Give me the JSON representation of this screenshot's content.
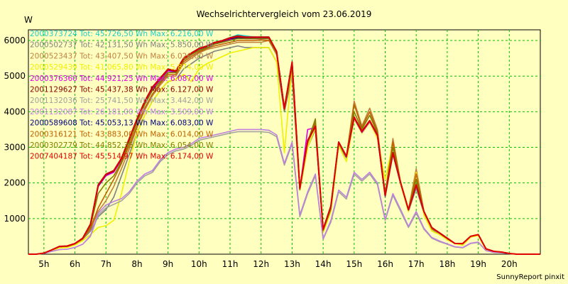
{
  "chart_data": {
    "type": "line",
    "title": "Wechselrichtervergleich vom 23.06.2019",
    "ylabel": "W",
    "xlabel": "",
    "footer": "SunnyReport pinxit",
    "ylim": [
      0,
      6300
    ],
    "xlim": [
      4.5,
      21
    ],
    "yticks": [
      1000,
      2000,
      3000,
      4000,
      5000,
      6000
    ],
    "xticks": [
      {
        "value": 5,
        "label": "5h"
      },
      {
        "value": 6,
        "label": "6h"
      },
      {
        "value": 7,
        "label": "7h"
      },
      {
        "value": 8,
        "label": "8h"
      },
      {
        "value": 9,
        "label": "9h"
      },
      {
        "value": 10,
        "label": "10h"
      },
      {
        "value": 11,
        "label": "11h"
      },
      {
        "value": 12,
        "label": "12h"
      },
      {
        "value": 13,
        "label": "13h"
      },
      {
        "value": 14,
        "label": "14h"
      },
      {
        "value": 15,
        "label": "15h"
      },
      {
        "value": 16,
        "label": "16h"
      },
      {
        "value": 17,
        "label": "17h"
      },
      {
        "value": 18,
        "label": "18h"
      },
      {
        "value": 19,
        "label": "19h"
      },
      {
        "value": 20,
        "label": "20h"
      }
    ],
    "grid": true,
    "legend_position": "top-left",
    "x": [
      4.5,
      4.75,
      5,
      5.25,
      5.5,
      5.75,
      6,
      6.25,
      6.5,
      6.75,
      7,
      7.25,
      7.5,
      7.75,
      8,
      8.25,
      8.5,
      8.75,
      9,
      9.25,
      9.5,
      9.75,
      10,
      10.25,
      10.5,
      10.75,
      11,
      11.25,
      11.5,
      11.75,
      12,
      12.25,
      12.5,
      12.75,
      13,
      13.25,
      13.5,
      13.75,
      14,
      14.25,
      14.5,
      14.75,
      15,
      15.25,
      15.5,
      15.75,
      16,
      16.25,
      16.5,
      16.75,
      17,
      17.25,
      17.5,
      17.75,
      18,
      18.25,
      18.5,
      18.75,
      19,
      19.25,
      19.5,
      19.75,
      20,
      20.25,
      20.5,
      20.75,
      21
    ],
    "series": [
      {
        "name": "2000373724",
        "legend": "2000373724 Tot: 45.726,50 Wh Max: 6.216,00 W",
        "color": "#20D0C8",
        "values": [
          0,
          0,
          30,
          120,
          220,
          230,
          300,
          450,
          850,
          1950,
          2250,
          2350,
          2700,
          3250,
          3800,
          4300,
          4700,
          4950,
          5200,
          5150,
          5500,
          5650,
          5780,
          5850,
          5950,
          6000,
          6080,
          6160,
          6130,
          6100,
          6100,
          6100,
          5700,
          4100,
          5400,
          1850,
          3200,
          3600,
          700,
          1350,
          3150,
          2750,
          3850,
          3450,
          3750,
          3350,
          1650,
          2850,
          2000,
          1250,
          1950,
          1200,
          750,
          600,
          450,
          300,
          300,
          500,
          550,
          150,
          80,
          60,
          20,
          0,
          0,
          0,
          0
        ]
      },
      {
        "name": "2000502737",
        "legend": "2000502737 Tot: 42.131,50 Wh Max: 5.850,00 W",
        "color": "#808080",
        "values": [
          0,
          0,
          30,
          120,
          200,
          210,
          280,
          420,
          650,
          1050,
          1250,
          1600,
          2200,
          2800,
          3400,
          3900,
          4300,
          4600,
          4850,
          4900,
          5200,
          5350,
          5500,
          5600,
          5700,
          5750,
          5800,
          5850,
          5800,
          5800,
          5800,
          5800,
          5400,
          4000,
          5000,
          1800,
          3000,
          3500,
          700,
          1300,
          3050,
          2700,
          3800,
          3400,
          3700,
          3300,
          1600,
          2800,
          1950,
          1200,
          1850,
          1150,
          700,
          550,
          450,
          300,
          280,
          480,
          530,
          140,
          70,
          50,
          20,
          0,
          0,
          0,
          0
        ]
      },
      {
        "name": "2000523437",
        "legend": "2000523437 Tot: 43.407,50 Wh Max: 6.026,00 W",
        "color": "#C08040",
        "values": [
          0,
          0,
          30,
          120,
          210,
          220,
          290,
          430,
          700,
          1200,
          1500,
          1900,
          2400,
          2950,
          3550,
          4050,
          4450,
          4750,
          5000,
          5000,
          5350,
          5500,
          5650,
          5750,
          5800,
          5850,
          5900,
          5950,
          5950,
          5950,
          5950,
          6000,
          5600,
          4050,
          5100,
          1800,
          3100,
          3650,
          650,
          1250,
          3100,
          2750,
          4300,
          3600,
          4100,
          3500,
          1700,
          3250,
          2000,
          1250,
          2400,
          1200,
          700,
          600,
          450,
          300,
          300,
          500,
          550,
          150,
          80,
          60,
          20,
          0,
          0,
          0,
          0
        ]
      },
      {
        "name": "2000529439",
        "legend": "2000529439 Tot: 41.065,80 Wh Max: 5.874,00 W",
        "color": "#F0F000",
        "values": [
          0,
          0,
          30,
          100,
          180,
          190,
          260,
          380,
          550,
          750,
          800,
          950,
          1700,
          2600,
          3400,
          3900,
          4300,
          4600,
          4850,
          4900,
          5050,
          4850,
          5200,
          5350,
          5450,
          5550,
          5650,
          5700,
          5750,
          5800,
          5800,
          5800,
          5400,
          2850,
          5300,
          1800,
          3000,
          3550,
          600,
          1200,
          3050,
          2600,
          3800,
          3400,
          3700,
          3250,
          2100,
          3100,
          1950,
          1200,
          2300,
          1100,
          650,
          550,
          400,
          300,
          250,
          480,
          520,
          120,
          60,
          50,
          20,
          0,
          0,
          0,
          0
        ]
      },
      {
        "name": "2000376360",
        "legend": "2000376360 Tot: 44.921,25 Wh Max: 6.087,00 W",
        "color": "#E000E0",
        "values": [
          0,
          0,
          30,
          120,
          210,
          220,
          290,
          440,
          800,
          1900,
          2200,
          2300,
          2650,
          3200,
          3750,
          4250,
          4650,
          4900,
          5150,
          5100,
          5450,
          5600,
          5720,
          5800,
          5900,
          5950,
          6030,
          6080,
          6050,
          6050,
          6050,
          6050,
          5650,
          4050,
          5350,
          1820,
          3500,
          3550,
          680,
          1330,
          3150,
          2730,
          3820,
          3420,
          3720,
          3320,
          1640,
          2830,
          1980,
          1240,
          1930,
          1180,
          740,
          590,
          440,
          300,
          300,
          500,
          550,
          150,
          80,
          60,
          20,
          0,
          0,
          0,
          0
        ]
      },
      {
        "name": "2001129627",
        "legend": "2001129627 Tot: 45.437,38 Wh Max: 6.127,00 W",
        "color": "#8B0000",
        "values": [
          0,
          0,
          30,
          120,
          220,
          230,
          300,
          450,
          850,
          1950,
          2250,
          2350,
          2700,
          3250,
          3800,
          4300,
          4700,
          4950,
          5200,
          5150,
          5500,
          5650,
          5780,
          5850,
          5950,
          6000,
          6080,
          6130,
          6100,
          6100,
          6100,
          6100,
          5700,
          4100,
          5400,
          1850,
          3200,
          3600,
          700,
          1350,
          3150,
          2750,
          3850,
          3450,
          3750,
          3350,
          1650,
          2850,
          2000,
          1250,
          1950,
          1200,
          750,
          600,
          450,
          300,
          300,
          500,
          550,
          150,
          80,
          60,
          20,
          0,
          0,
          0,
          0
        ]
      },
      {
        "name": "2001132036",
        "legend": "2001132036 Tot: 25.741,50 Wh Max: 3.442,00 W",
        "color": "#A0A0A0",
        "values": [
          0,
          0,
          20,
          80,
          130,
          140,
          190,
          280,
          500,
          1100,
          1300,
          1400,
          1500,
          1700,
          2000,
          2200,
          2300,
          2600,
          2800,
          2900,
          2950,
          3050,
          3200,
          3250,
          3300,
          3350,
          3400,
          3440,
          3440,
          3440,
          3440,
          3420,
          3300,
          2500,
          3100,
          1050,
          1700,
          2200,
          420,
          900,
          1750,
          1550,
          2250,
          2050,
          2250,
          1950,
          950,
          1650,
          1200,
          750,
          1150,
          700,
          450,
          350,
          280,
          200,
          180,
          300,
          330,
          100,
          50,
          40,
          15,
          0,
          0,
          0,
          0
        ]
      },
      {
        "name": "2001132087",
        "legend": "2001132087 Tot: 26.181,00 Wh Max: 3.509,00 W",
        "color": "#C080E0",
        "values": [
          0,
          0,
          20,
          80,
          130,
          140,
          190,
          280,
          520,
          1150,
          1380,
          1480,
          1560,
          1750,
          2050,
          2250,
          2350,
          2650,
          2850,
          2950,
          3000,
          3100,
          3250,
          3300,
          3350,
          3400,
          3450,
          3500,
          3500,
          3500,
          3500,
          3480,
          3350,
          2550,
          3150,
          1100,
          1750,
          2250,
          430,
          950,
          1800,
          1600,
          2300,
          2100,
          2300,
          2000,
          980,
          1700,
          1250,
          780,
          1200,
          730,
          470,
          370,
          290,
          210,
          190,
          310,
          340,
          100,
          50,
          40,
          15,
          0,
          0,
          0,
          0
        ]
      },
      {
        "name": "2000589608",
        "legend": "2000589608 Tot: 45.053,13 Wh Max: 6.083,00 W",
        "color": "#000080",
        "values": [
          0,
          0,
          30,
          120,
          215,
          225,
          295,
          445,
          830,
          1920,
          2230,
          2330,
          2680,
          3230,
          3780,
          4280,
          4680,
          4930,
          5180,
          5130,
          5480,
          5630,
          5760,
          5830,
          5930,
          5980,
          6050,
          6083,
          6070,
          6070,
          6070,
          6070,
          5680,
          4080,
          5380,
          1840,
          3180,
          3580,
          690,
          1340,
          3140,
          2740,
          3840,
          3440,
          3740,
          3340,
          1640,
          2840,
          1990,
          1240,
          1940,
          1190,
          740,
          590,
          440,
          300,
          300,
          500,
          550,
          150,
          80,
          60,
          20,
          0,
          0,
          0,
          0
        ]
      },
      {
        "name": "2000316121",
        "legend": "2000316121 Tot: 43.883,00 Wh Max: 6.014,00 W",
        "color": "#C06000",
        "values": [
          0,
          0,
          30,
          120,
          210,
          220,
          290,
          430,
          720,
          1300,
          1700,
          2100,
          2550,
          3050,
          3600,
          4100,
          4500,
          4800,
          5050,
          5050,
          5400,
          5550,
          5680,
          5780,
          5850,
          5900,
          5950,
          6000,
          6000,
          6000,
          6014,
          6000,
          5650,
          4050,
          5250,
          1810,
          3150,
          3700,
          660,
          1260,
          3120,
          2760,
          4200,
          3550,
          4000,
          3450,
          1680,
          3150,
          2000,
          1250,
          2250,
          1200,
          720,
          600,
          450,
          300,
          300,
          500,
          550,
          150,
          80,
          60,
          20,
          0,
          0,
          0,
          0
        ]
      },
      {
        "name": "2000302779",
        "legend": "2000302779 Tot: 44.852,35 Wh Max: 6.054,00 W",
        "color": "#808000",
        "values": [
          0,
          0,
          30,
          120,
          210,
          220,
          290,
          440,
          780,
          1700,
          2000,
          2200,
          2600,
          3150,
          3700,
          4200,
          4600,
          4850,
          5100,
          5100,
          5450,
          5600,
          5720,
          5800,
          5900,
          5950,
          6000,
          6054,
          6050,
          6050,
          6050,
          6050,
          5650,
          4050,
          5300,
          1820,
          3150,
          3800,
          670,
          1280,
          3120,
          2740,
          4000,
          3500,
          3900,
          3400,
          1660,
          3000,
          1990,
          1240,
          2100,
          1190,
          730,
          600,
          450,
          300,
          300,
          500,
          550,
          150,
          80,
          60,
          20,
          0,
          0,
          0,
          0
        ]
      },
      {
        "name": "2007404187",
        "legend": "2007404187 Tot: 45.514,97 Wh Max: 6.174,00 W",
        "color": "#E00000",
        "values": [
          0,
          0,
          30,
          120,
          220,
          230,
          300,
          450,
          840,
          1940,
          2240,
          2340,
          2690,
          3240,
          3790,
          4290,
          4690,
          4940,
          5190,
          5140,
          5490,
          5640,
          5770,
          5840,
          5940,
          5990,
          6070,
          6110,
          6090,
          6090,
          6090,
          6090,
          5690,
          4090,
          5390,
          1850,
          3190,
          3590,
          700,
          1350,
          3150,
          2750,
          3850,
          3450,
          3750,
          3350,
          1650,
          2850,
          2000,
          1250,
          1950,
          1200,
          750,
          600,
          450,
          300,
          300,
          500,
          550,
          150,
          80,
          60,
          20,
          0,
          0,
          0,
          0
        ]
      }
    ]
  }
}
